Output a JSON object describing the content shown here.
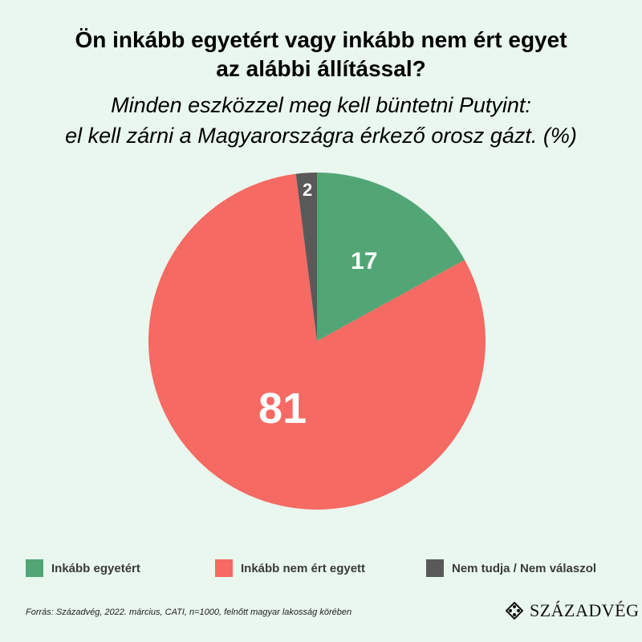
{
  "title_line1": "Ön inkább egyetért vagy inkább nem ért egyet",
  "title_line2": "az alábbi állítással?",
  "subtitle_line1": "Minden eszközzel meg kell büntetni Putyint:",
  "subtitle_line2": "el kell zárni a Magyarországra érkező orosz gázt. (%)",
  "chart_data": {
    "type": "pie",
    "title": "Ön inkább egyetért vagy inkább nem ért egyet az alábbi állítással?",
    "subtitle": "Minden eszközzel meg kell büntetni Putyint: el kell zárni a Magyarországra érkező orosz gázt. (%)",
    "legend_position": "bottom",
    "slices": [
      {
        "label": "Inkább egyetért",
        "value": 17,
        "color": "#52a675"
      },
      {
        "label": "Inkább nem ért egyett",
        "value": 81,
        "color": "#f56a63"
      },
      {
        "label": "Nem tudja / Nem válaszol",
        "value": 2,
        "color": "#595959"
      }
    ]
  },
  "legend": [
    {
      "label": "Inkább egyetért",
      "color": "#52a675"
    },
    {
      "label": "Inkább nem ért egyett",
      "color": "#f56a63"
    },
    {
      "label": "Nem tudja / Nem válaszol",
      "color": "#595959"
    }
  ],
  "source": "Forrás: Századvég, 2022. március, CATI, n=1000, felnőtt magyar lakosság körében",
  "logo_text": "SZÁZADVÉG"
}
